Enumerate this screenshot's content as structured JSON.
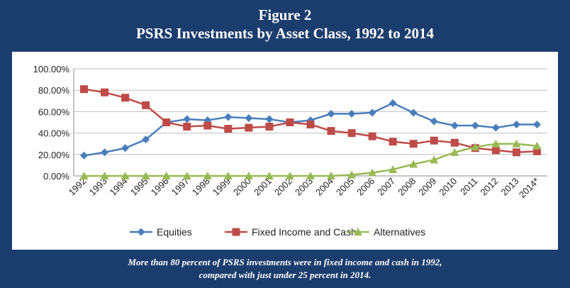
{
  "figure": {
    "number_label": "Figure 2",
    "title": "PSRS Investments by Asset Class, 1992 to 2014"
  },
  "caption": {
    "line1": "More than 80 percent of PSRS investments were in fixed income and cash in 1992,",
    "line2": "compared with just under 25 percent in 2014."
  },
  "chart_data": {
    "type": "line",
    "title": "PSRS Investments by Asset Class, 1992 to 2014",
    "x": [
      "1992",
      "1993",
      "1994",
      "1995",
      "1996",
      "1997",
      "1998",
      "1999",
      "2000",
      "2001",
      "2002",
      "2003",
      "2004",
      "2005",
      "2006",
      "2007",
      "2008",
      "2009",
      "2010",
      "2011",
      "2012",
      "2013",
      "2014*"
    ],
    "y_ticks": [
      "0.00%",
      "20.00%",
      "40.00%",
      "60.00%",
      "80.00%",
      "100.00%"
    ],
    "ylim": [
      0,
      100
    ],
    "grid": true,
    "legend_position": "bottom",
    "series": [
      {
        "name": "Equities",
        "color": "#4a7ebb",
        "marker": "diamond",
        "values": [
          19,
          22,
          26,
          34,
          50,
          53,
          52,
          55,
          54,
          53,
          50,
          52,
          58,
          58,
          59,
          68,
          59,
          51,
          47,
          47,
          45,
          48,
          48
        ]
      },
      {
        "name": "Fixed Income and Cash",
        "color": "#be4b48",
        "marker": "square",
        "values": [
          81,
          78,
          73,
          66,
          50,
          46,
          47,
          44,
          45,
          46,
          50,
          48,
          42,
          40,
          37,
          32,
          30,
          33,
          31,
          26,
          24,
          22,
          23
        ]
      },
      {
        "name": "Alternatives",
        "color": "#98b954",
        "marker": "triangle",
        "values": [
          0,
          0,
          0,
          0,
          0,
          0,
          0,
          0,
          0,
          0,
          0,
          0,
          0,
          1,
          3,
          6,
          11,
          15,
          22,
          27,
          30,
          30,
          28
        ]
      }
    ]
  }
}
